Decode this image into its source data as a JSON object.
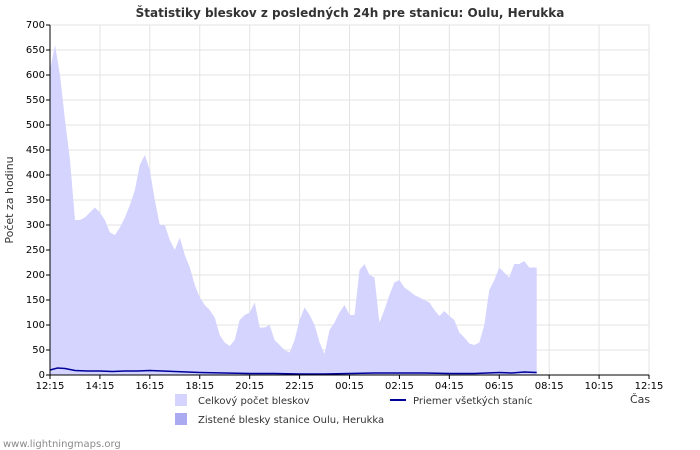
{
  "chart_data": {
    "type": "area",
    "title": "Štatistiky bleskov z posledných 24h pre stanicu: Oulu, Herukka",
    "ylabel": "Počet za hodinu",
    "xlabel": "Čas",
    "ylim": [
      0,
      700
    ],
    "y_ticks": [
      0,
      50,
      100,
      150,
      200,
      250,
      300,
      350,
      400,
      450,
      500,
      550,
      600,
      650,
      700
    ],
    "x_tick_labels": [
      "12:15",
      "14:15",
      "16:15",
      "18:15",
      "20:15",
      "22:15",
      "00:15",
      "02:15",
      "04:15",
      "06:15",
      "08:15",
      "10:15",
      "12:15"
    ],
    "grid": true,
    "series": [
      {
        "name": "Celkový počet bleskov",
        "kind": "area",
        "color": "#d4d4ff",
        "points": [
          [
            0,
            610
          ],
          [
            0.2,
            660
          ],
          [
            0.4,
            600
          ],
          [
            0.6,
            510
          ],
          [
            0.8,
            430
          ],
          [
            1.0,
            310
          ],
          [
            1.2,
            310
          ],
          [
            1.4,
            315
          ],
          [
            1.6,
            325
          ],
          [
            1.8,
            335
          ],
          [
            2.0,
            325
          ],
          [
            2.2,
            310
          ],
          [
            2.4,
            285
          ],
          [
            2.6,
            280
          ],
          [
            2.8,
            295
          ],
          [
            3.0,
            315
          ],
          [
            3.2,
            340
          ],
          [
            3.4,
            370
          ],
          [
            3.6,
            420
          ],
          [
            3.8,
            440
          ],
          [
            4.0,
            410
          ],
          [
            4.2,
            350
          ],
          [
            4.4,
            300
          ],
          [
            4.6,
            300
          ],
          [
            4.8,
            270
          ],
          [
            5.0,
            250
          ],
          [
            5.2,
            275
          ],
          [
            5.4,
            240
          ],
          [
            5.6,
            215
          ],
          [
            5.8,
            180
          ],
          [
            6.0,
            155
          ],
          [
            6.2,
            140
          ],
          [
            6.4,
            130
          ],
          [
            6.6,
            115
          ],
          [
            6.8,
            80
          ],
          [
            7.0,
            65
          ],
          [
            7.2,
            58
          ],
          [
            7.4,
            70
          ],
          [
            7.6,
            110
          ],
          [
            7.8,
            120
          ],
          [
            8.0,
            125
          ],
          [
            8.2,
            145
          ],
          [
            8.4,
            95
          ],
          [
            8.6,
            95
          ],
          [
            8.8,
            100
          ],
          [
            9.0,
            70
          ],
          [
            9.2,
            60
          ],
          [
            9.4,
            50
          ],
          [
            9.6,
            45
          ],
          [
            9.8,
            70
          ],
          [
            10.0,
            110
          ],
          [
            10.2,
            135
          ],
          [
            10.4,
            120
          ],
          [
            10.6,
            100
          ],
          [
            10.8,
            65
          ],
          [
            11.0,
            42
          ],
          [
            11.2,
            90
          ],
          [
            11.4,
            105
          ],
          [
            11.6,
            125
          ],
          [
            11.8,
            140
          ],
          [
            12.0,
            120
          ],
          [
            12.2,
            120
          ],
          [
            12.4,
            210
          ],
          [
            12.6,
            222
          ],
          [
            12.8,
            200
          ],
          [
            13.0,
            195
          ],
          [
            13.2,
            105
          ],
          [
            13.4,
            130
          ],
          [
            13.6,
            160
          ],
          [
            13.8,
            185
          ],
          [
            14.0,
            190
          ],
          [
            14.2,
            175
          ],
          [
            14.4,
            168
          ],
          [
            14.6,
            160
          ],
          [
            14.8,
            155
          ],
          [
            15.0,
            150
          ],
          [
            15.2,
            145
          ],
          [
            15.4,
            130
          ],
          [
            15.6,
            118
          ],
          [
            15.8,
            128
          ],
          [
            16.0,
            118
          ],
          [
            16.2,
            110
          ],
          [
            16.4,
            85
          ],
          [
            16.6,
            75
          ],
          [
            16.8,
            63
          ],
          [
            17.0,
            60
          ],
          [
            17.2,
            65
          ],
          [
            17.4,
            100
          ],
          [
            17.6,
            170
          ],
          [
            17.8,
            190
          ],
          [
            18.0,
            215
          ],
          [
            18.2,
            205
          ],
          [
            18.4,
            195
          ],
          [
            18.6,
            222
          ],
          [
            18.8,
            222
          ],
          [
            19.0,
            228
          ],
          [
            19.2,
            215
          ],
          [
            19.4,
            215
          ],
          [
            19.5,
            215
          ]
        ]
      },
      {
        "name": "Zistené blesky stanice Oulu, Herukka",
        "kind": "area",
        "color": "#aaaaf0",
        "points": [
          [
            0,
            0
          ],
          [
            19.5,
            0
          ]
        ]
      },
      {
        "name": "Priemer všetkých staníc",
        "kind": "line",
        "color": "#000099",
        "points": [
          [
            0,
            10
          ],
          [
            0.3,
            14
          ],
          [
            0.6,
            13
          ],
          [
            1.0,
            9
          ],
          [
            1.5,
            8
          ],
          [
            2.0,
            8
          ],
          [
            2.5,
            7
          ],
          [
            3.0,
            8
          ],
          [
            3.5,
            8
          ],
          [
            4.0,
            9
          ],
          [
            4.5,
            8
          ],
          [
            5.0,
            7
          ],
          [
            5.5,
            6
          ],
          [
            6.0,
            5
          ],
          [
            7.0,
            4
          ],
          [
            8.0,
            3
          ],
          [
            9.0,
            3
          ],
          [
            10.0,
            2
          ],
          [
            11.0,
            2
          ],
          [
            12.0,
            3
          ],
          [
            13.0,
            4
          ],
          [
            14.0,
            4
          ],
          [
            15.0,
            4
          ],
          [
            16.0,
            3
          ],
          [
            17.0,
            3
          ],
          [
            18.0,
            5
          ],
          [
            18.5,
            4
          ],
          [
            19.0,
            6
          ],
          [
            19.5,
            5
          ]
        ]
      }
    ],
    "legend": [
      {
        "label": "Celkový počet bleskov",
        "kind": "area",
        "color": "#d4d4ff"
      },
      {
        "label": "Priemer všetkých staníc",
        "kind": "line",
        "color": "#000099"
      },
      {
        "label": "Zistené blesky stanice Oulu, Herukka",
        "kind": "area",
        "color": "#aaaaf0"
      }
    ]
  },
  "footer": "www.lightningmaps.org"
}
